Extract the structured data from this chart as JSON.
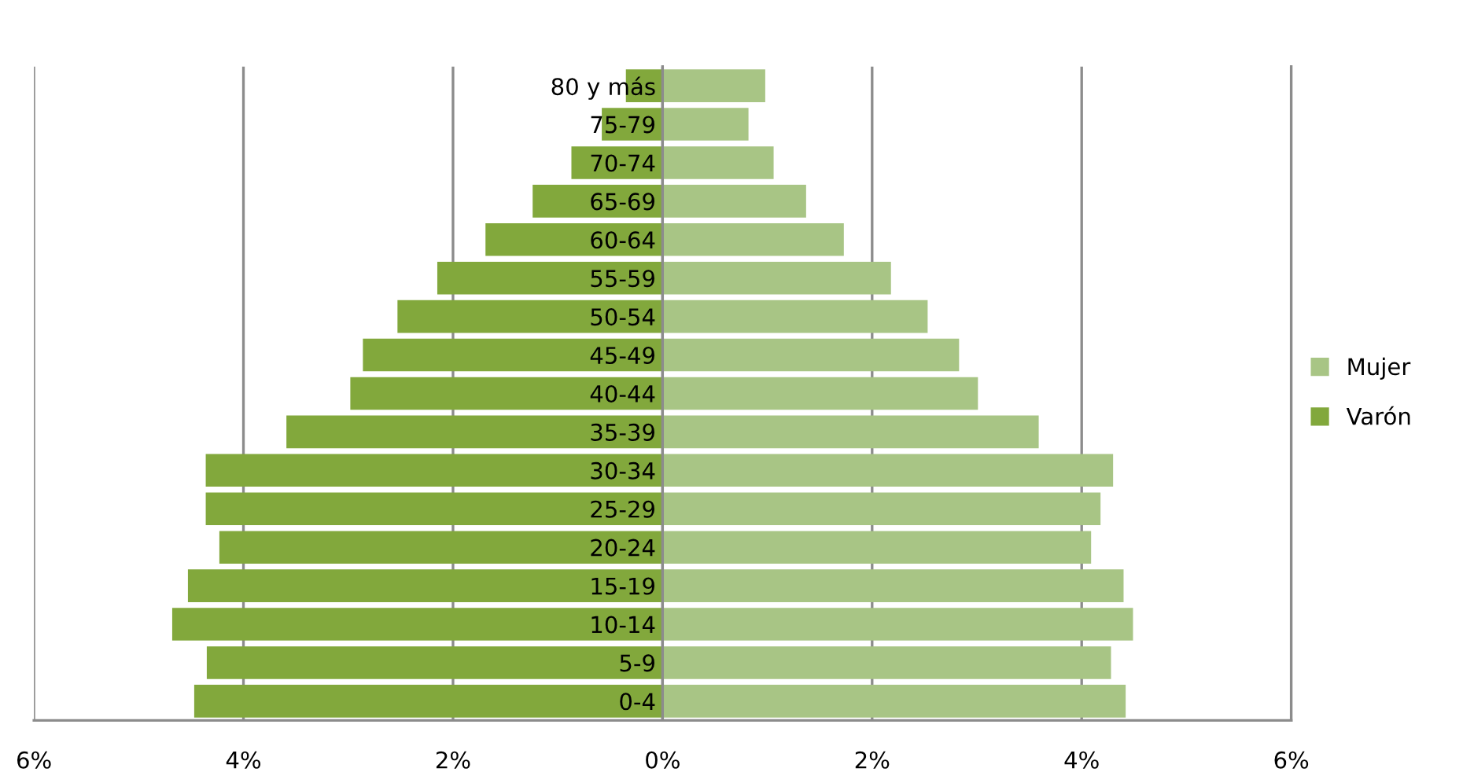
{
  "chart_data": {
    "type": "bar",
    "orientation": "horizontal",
    "categories": [
      "80 y más",
      "75-79",
      "70-74",
      "65-69",
      "60-64",
      "55-59",
      "50-54",
      "45-49",
      "40-44",
      "35-39",
      "30-34",
      "25-29",
      "20-24",
      "15-19",
      "10-14",
      "5-9",
      "0-4"
    ],
    "series": [
      {
        "name": "Mujer",
        "color": "#a8c585",
        "values": [
          0.98,
          0.82,
          1.06,
          1.37,
          1.73,
          2.18,
          2.53,
          2.83,
          3.01,
          3.59,
          4.3,
          4.18,
          4.09,
          4.4,
          4.49,
          4.28,
          4.42
        ]
      },
      {
        "name": "Varón",
        "color": "#82a83c",
        "values": [
          -0.35,
          -0.58,
          -0.87,
          -1.24,
          -1.69,
          -2.15,
          -2.53,
          -2.86,
          -2.98,
          -3.59,
          -4.36,
          -4.36,
          -4.23,
          -4.53,
          -4.68,
          -4.35,
          -4.47
        ]
      }
    ],
    "xlim": [
      -6,
      6
    ],
    "xticks": [
      {
        "value": -6,
        "label": "6%"
      },
      {
        "value": -4,
        "label": "4%"
      },
      {
        "value": -2,
        "label": "2%"
      },
      {
        "value": 0,
        "label": "0%"
      },
      {
        "value": 2,
        "label": "2%"
      },
      {
        "value": 4,
        "label": "4%"
      },
      {
        "value": 6,
        "label": "6%"
      }
    ],
    "grid": "x",
    "legend": "right",
    "stacked": true
  }
}
